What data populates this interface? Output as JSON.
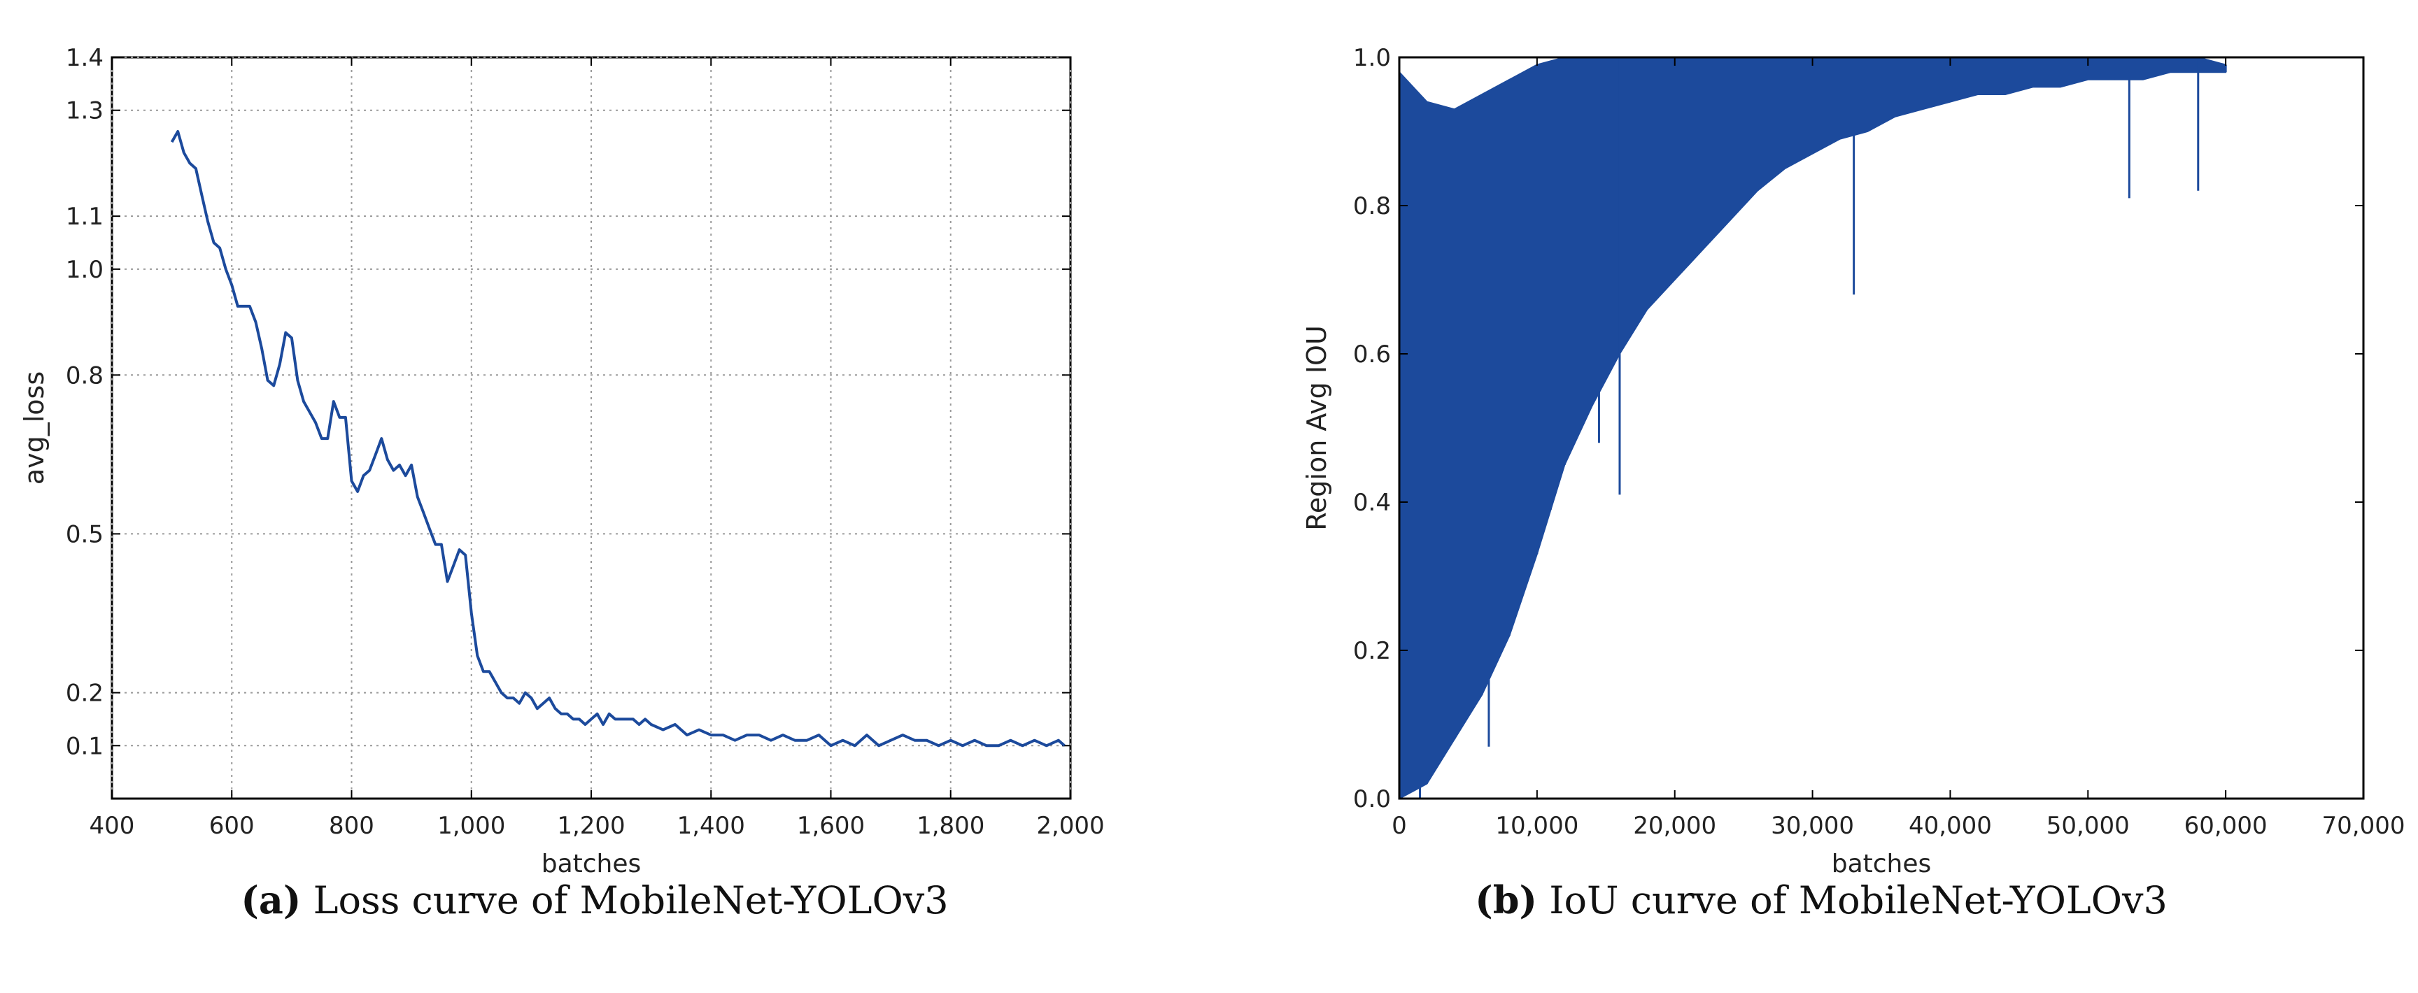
{
  "colors": {
    "series": "#1c4a9c",
    "grid": "#9a9a9a",
    "axis": "#000000"
  },
  "chart_data": [
    {
      "type": "line",
      "xlabel": "batches",
      "ylabel": "avg_loss",
      "xlim": [
        400,
        2000
      ],
      "ylim": [
        0,
        1.4
      ],
      "xticks": [
        400,
        600,
        800,
        1000,
        1200,
        1400,
        1600,
        1800,
        2000
      ],
      "xtick_labels": [
        "400",
        "600",
        "800",
        "1,000",
        "1,200",
        "1,400",
        "1,600",
        "1,800",
        "2,000"
      ],
      "yticks": [
        0.1,
        0.2,
        0.5,
        0.8,
        1.0,
        1.1,
        1.3,
        1.4
      ],
      "ytick_labels": [
        "0.1",
        "0.2",
        "0.5",
        "0.8",
        "1.0",
        "1.1",
        "1.3",
        "1.4"
      ],
      "grid": true,
      "series": [
        {
          "name": "avg_loss",
          "x": [
            500,
            510,
            520,
            530,
            540,
            550,
            560,
            570,
            580,
            590,
            600,
            610,
            620,
            630,
            640,
            650,
            660,
            670,
            680,
            690,
            700,
            710,
            720,
            730,
            740,
            750,
            760,
            770,
            780,
            790,
            800,
            810,
            820,
            830,
            840,
            850,
            860,
            870,
            880,
            890,
            900,
            910,
            920,
            930,
            940,
            950,
            960,
            970,
            980,
            990,
            1000,
            1010,
            1020,
            1030,
            1040,
            1050,
            1060,
            1070,
            1080,
            1090,
            1100,
            1110,
            1120,
            1130,
            1140,
            1150,
            1160,
            1170,
            1180,
            1190,
            1200,
            1210,
            1220,
            1230,
            1240,
            1250,
            1260,
            1270,
            1280,
            1290,
            1300,
            1320,
            1340,
            1360,
            1380,
            1400,
            1420,
            1440,
            1460,
            1480,
            1500,
            1520,
            1540,
            1560,
            1580,
            1600,
            1620,
            1640,
            1660,
            1680,
            1700,
            1720,
            1740,
            1760,
            1780,
            1800,
            1820,
            1840,
            1860,
            1880,
            1900,
            1920,
            1940,
            1960,
            1980,
            1990
          ],
          "y": [
            1.24,
            1.26,
            1.22,
            1.2,
            1.19,
            1.14,
            1.09,
            1.05,
            1.04,
            1.0,
            0.97,
            0.93,
            0.93,
            0.93,
            0.9,
            0.85,
            0.79,
            0.78,
            0.82,
            0.88,
            0.87,
            0.79,
            0.75,
            0.73,
            0.71,
            0.68,
            0.68,
            0.75,
            0.72,
            0.72,
            0.6,
            0.58,
            0.61,
            0.62,
            0.65,
            0.68,
            0.64,
            0.62,
            0.63,
            0.61,
            0.63,
            0.57,
            0.54,
            0.51,
            0.48,
            0.48,
            0.41,
            0.44,
            0.47,
            0.46,
            0.35,
            0.27,
            0.24,
            0.24,
            0.22,
            0.2,
            0.19,
            0.19,
            0.18,
            0.2,
            0.19,
            0.17,
            0.18,
            0.19,
            0.17,
            0.16,
            0.16,
            0.15,
            0.15,
            0.14,
            0.15,
            0.16,
            0.14,
            0.16,
            0.15,
            0.15,
            0.15,
            0.15,
            0.14,
            0.15,
            0.14,
            0.13,
            0.14,
            0.12,
            0.13,
            0.12,
            0.12,
            0.11,
            0.12,
            0.12,
            0.11,
            0.12,
            0.11,
            0.11,
            0.12,
            0.1,
            0.11,
            0.1,
            0.12,
            0.1,
            0.11,
            0.12,
            0.11,
            0.11,
            0.1,
            0.11,
            0.1,
            0.11,
            0.1,
            0.1,
            0.11,
            0.1,
            0.11,
            0.1,
            0.11,
            0.1
          ]
        }
      ]
    },
    {
      "type": "line",
      "xlabel": "batches",
      "ylabel": "Region Avg IOU",
      "xlim": [
        0,
        70000
      ],
      "ylim": [
        0,
        1.0
      ],
      "xticks": [
        0,
        10000,
        20000,
        30000,
        40000,
        50000,
        60000,
        70000
      ],
      "xtick_labels": [
        "0",
        "10,000",
        "20,000",
        "30,000",
        "40,000",
        "50,000",
        "60,000",
        "70,000"
      ],
      "yticks": [
        0.0,
        0.2,
        0.4,
        0.6,
        0.8,
        1.0
      ],
      "ytick_labels": [
        "0.0",
        "0.2",
        "0.4",
        "0.6",
        "0.8",
        "1.0"
      ],
      "grid": false,
      "series": [
        {
          "name": "Region Avg IOU",
          "x": [
            0,
            2000,
            4000,
            6000,
            8000,
            10000,
            12000,
            14000,
            16000,
            18000,
            20000,
            22000,
            24000,
            26000,
            28000,
            30000,
            32000,
            34000,
            36000,
            38000,
            40000,
            42000,
            44000,
            46000,
            48000,
            50000,
            52000,
            54000,
            56000,
            58000,
            60000
          ],
          "upper": [
            0.98,
            0.94,
            0.93,
            0.95,
            0.97,
            0.99,
            1.0,
            1.0,
            1.0,
            1.0,
            1.0,
            1.0,
            1.0,
            1.0,
            1.0,
            1.0,
            1.0,
            1.0,
            1.0,
            1.0,
            1.0,
            1.0,
            1.0,
            1.0,
            1.0,
            1.0,
            1.0,
            1.0,
            1.0,
            1.0,
            0.99
          ],
          "lower": [
            0.0,
            0.02,
            0.08,
            0.14,
            0.22,
            0.33,
            0.45,
            0.53,
            0.6,
            0.66,
            0.7,
            0.74,
            0.78,
            0.82,
            0.85,
            0.87,
            0.89,
            0.9,
            0.92,
            0.93,
            0.94,
            0.95,
            0.95,
            0.96,
            0.96,
            0.97,
            0.97,
            0.97,
            0.98,
            0.98,
            0.98
          ],
          "outliers": [
            {
              "x": 16000,
              "y": 0.41
            },
            {
              "x": 14500,
              "y": 0.48
            },
            {
              "x": 11000,
              "y": 0.39
            },
            {
              "x": 33000,
              "y": 0.68
            },
            {
              "x": 53000,
              "y": 0.81
            },
            {
              "x": 58000,
              "y": 0.82
            },
            {
              "x": 6500,
              "y": 0.07
            },
            {
              "x": 1500,
              "y": 0.0
            }
          ]
        }
      ]
    }
  ],
  "captions": [
    {
      "letter": "(a)",
      "text": "Loss curve of MobileNet-YOLOv3"
    },
    {
      "letter": "(b)",
      "text": "IoU curve of MobileNet-YOLOv3"
    }
  ]
}
